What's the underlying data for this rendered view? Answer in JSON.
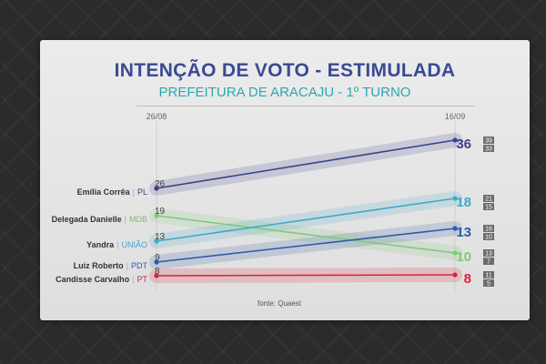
{
  "title": "INTENÇÃO DE VOTO - ESTIMULADA",
  "subtitle": "PREFEITURA DE ARACAJU - 1º TURNO",
  "source": "fonte: Quaest",
  "chart_data": {
    "type": "line",
    "x": [
      "26/08",
      "16/09"
    ],
    "series": [
      {
        "name": "Emília Corrêa",
        "party": "PL",
        "color": "#3b3f8c",
        "party_color": "#3b3f8c",
        "values": [
          26,
          36
        ],
        "margin": [
          "39",
          "33"
        ]
      },
      {
        "name": "Delegada Danielle",
        "party": "MDB",
        "color": "#7ec87a",
        "party_color": "#7bbf6a",
        "values": [
          19,
          10
        ],
        "margin": [
          "13",
          "7"
        ]
      },
      {
        "name": "Yandra",
        "party": "UNIÃO",
        "color": "#3fa8c9",
        "party_color": "#3fa8c9",
        "values": [
          13,
          18
        ],
        "margin": [
          "21",
          "15"
        ]
      },
      {
        "name": "Luiz Roberto",
        "party": "PDT",
        "color": "#2e5aa8",
        "party_color": "#2e5aa8",
        "values": [
          9,
          13
        ],
        "margin": [
          "16",
          "10"
        ]
      },
      {
        "name": "Candisse Carvalho",
        "party": "PT",
        "color": "#e0203a",
        "party_color": "#e0203a",
        "values": [
          8,
          8
        ],
        "margin": [
          "11",
          "5"
        ]
      }
    ],
    "left_labels": [
      "26",
      "19",
      "13",
      "9",
      "8"
    ]
  }
}
